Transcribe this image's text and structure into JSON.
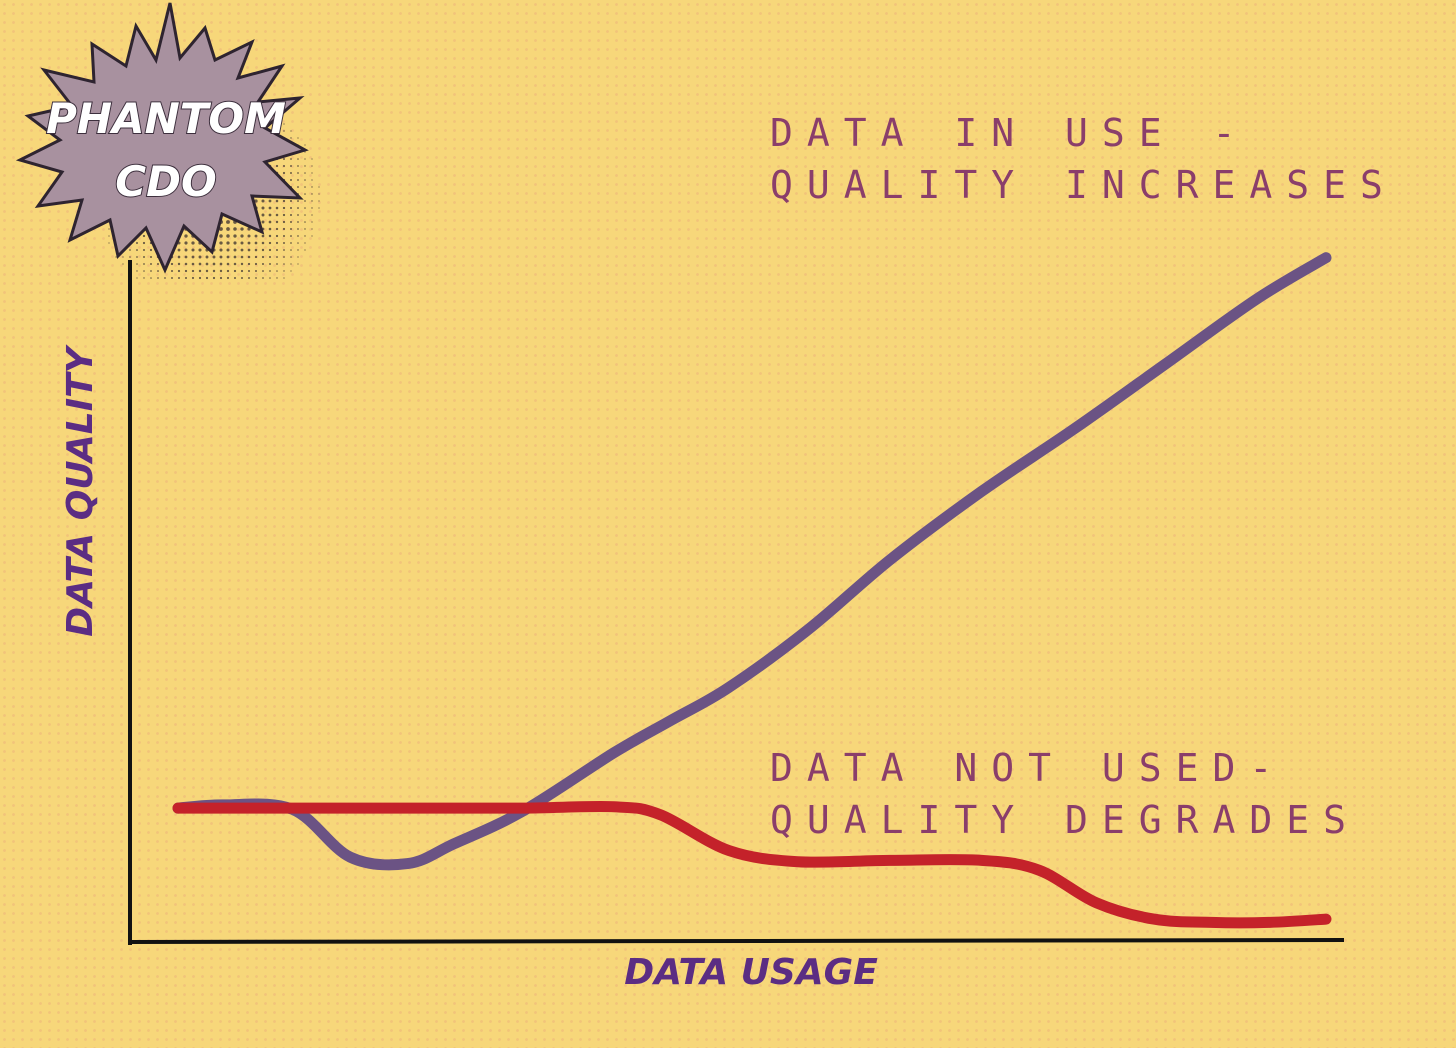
{
  "badge": {
    "line1": "PHANTOM",
    "line2": "CDO",
    "fill_color": "#a8919f"
  },
  "colors": {
    "background": "#f7d77a",
    "axis": "#111111",
    "in_use_line": "#6b5384",
    "not_used_line": "#c4222a",
    "annotation_text": "#8a3e6b",
    "axis_label_text": "#5b2d83"
  },
  "chart_data": {
    "type": "line",
    "title": "",
    "xlabel": "DATA USAGE",
    "ylabel": "DATA QUALITY",
    "grid": false,
    "xlim": [
      0,
      100
    ],
    "ylim": [
      0,
      100
    ],
    "series": [
      {
        "name": "DATA IN USE -\nQUALITY INCREASES",
        "label_line1": "DATA IN USE -",
        "label_line2": "QUALITY INCREASES",
        "color": "#6b5384",
        "x": [
          0,
          4,
          10,
          15,
          20,
          24,
          30,
          38,
          43,
          48,
          55,
          62,
          70,
          78,
          86,
          94,
          100
        ],
        "y": [
          20.5,
          21.0,
          20.3,
          13.0,
          12.0,
          15.0,
          20.0,
          29.0,
          34.0,
          39.0,
          48.0,
          58.5,
          69.0,
          78.5,
          88.5,
          98.5,
          104.8
        ]
      },
      {
        "name": "DATA NOT USED-\nQUALITY DEGRADES",
        "label_line1": "DATA NOT USED-",
        "label_line2": "QUALITY DEGRADES",
        "color": "#c4222a",
        "x": [
          0,
          10,
          20,
          30,
          38,
          42,
          48,
          54,
          62,
          70,
          75,
          80,
          85,
          90,
          95,
          100
        ],
        "y": [
          20.5,
          20.5,
          20.5,
          20.5,
          20.7,
          19.5,
          14.0,
          12.3,
          12.5,
          12.5,
          11.0,
          6.0,
          3.5,
          3.0,
          3.0,
          3.5
        ]
      }
    ]
  }
}
